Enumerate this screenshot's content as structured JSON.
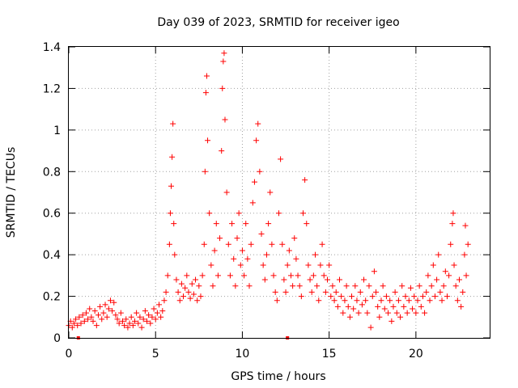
{
  "chart_data": {
    "type": "scatter",
    "title": "Day 039 of 2023, SRMTID for receiver igeo",
    "xlabel": "GPS time / hours",
    "ylabel": "SRMTID / TECUs",
    "xlim": [
      0,
      24.25
    ],
    "ylim": [
      0,
      1.4
    ],
    "xticks": [
      0,
      5,
      10,
      15,
      20
    ],
    "xtick_labels": [
      "0",
      "5",
      "10",
      "15",
      "20"
    ],
    "yticks": [
      0,
      0.2,
      0.4,
      0.6,
      0.8,
      1,
      1.2,
      1.4
    ],
    "ytick_labels": [
      "0",
      "0.2",
      "0.4",
      "0.6",
      "0.8",
      "1",
      "1.2",
      "1.4"
    ],
    "grid": true,
    "marker": "+",
    "color": "#ff0000",
    "series": [
      {
        "name": "SRMTID",
        "points": [
          [
            0.0,
            0.06
          ],
          [
            0.1,
            0.08
          ],
          [
            0.2,
            0.05
          ],
          [
            0.3,
            0.07
          ],
          [
            0.4,
            0.09
          ],
          [
            0.5,
            0.06
          ],
          [
            0.6,
            0.1
          ],
          [
            0.7,
            0.07
          ],
          [
            0.8,
            0.11
          ],
          [
            0.9,
            0.08
          ],
          [
            1.0,
            0.12
          ],
          [
            1.1,
            0.09
          ],
          [
            1.2,
            0.14
          ],
          [
            1.3,
            0.1
          ],
          [
            1.4,
            0.08
          ],
          [
            1.5,
            0.13
          ],
          [
            1.6,
            0.06
          ],
          [
            1.7,
            0.11
          ],
          [
            1.8,
            0.15
          ],
          [
            1.9,
            0.09
          ],
          [
            2.0,
            0.12
          ],
          [
            2.1,
            0.16
          ],
          [
            2.2,
            0.1
          ],
          [
            2.3,
            0.14
          ],
          [
            2.4,
            0.18
          ],
          [
            2.5,
            0.13
          ],
          [
            2.6,
            0.17
          ],
          [
            2.7,
            0.11
          ],
          [
            2.8,
            0.09
          ],
          [
            2.9,
            0.07
          ],
          [
            3.0,
            0.12
          ],
          [
            3.1,
            0.08
          ],
          [
            3.2,
            0.06
          ],
          [
            3.3,
            0.09
          ],
          [
            3.4,
            0.05
          ],
          [
            3.5,
            0.07
          ],
          [
            3.6,
            0.1
          ],
          [
            3.7,
            0.06
          ],
          [
            3.8,
            0.08
          ],
          [
            3.9,
            0.12
          ],
          [
            4.0,
            0.07
          ],
          [
            4.1,
            0.1
          ],
          [
            4.2,
            0.05
          ],
          [
            4.3,
            0.09
          ],
          [
            4.4,
            0.13
          ],
          [
            4.5,
            0.08
          ],
          [
            4.6,
            0.11
          ],
          [
            4.7,
            0.07
          ],
          [
            4.8,
            0.1
          ],
          [
            4.9,
            0.14
          ],
          [
            5.0,
            0.09
          ],
          [
            5.1,
            0.12
          ],
          [
            5.2,
            0.16
          ],
          [
            5.3,
            0.1
          ],
          [
            5.4,
            0.13
          ],
          [
            5.5,
            0.18
          ],
          [
            5.6,
            0.22
          ],
          [
            5.7,
            0.3
          ],
          [
            5.8,
            0.45
          ],
          [
            5.85,
            0.6
          ],
          [
            5.9,
            0.73
          ],
          [
            5.95,
            0.87
          ],
          [
            6.0,
            1.03
          ],
          [
            6.05,
            0.55
          ],
          [
            6.1,
            0.4
          ],
          [
            6.2,
            0.28
          ],
          [
            6.3,
            0.22
          ],
          [
            6.4,
            0.18
          ],
          [
            6.5,
            0.26
          ],
          [
            6.6,
            0.2
          ],
          [
            6.7,
            0.24
          ],
          [
            6.8,
            0.3
          ],
          [
            6.9,
            0.22
          ],
          [
            7.0,
            0.19
          ],
          [
            7.1,
            0.26
          ],
          [
            7.2,
            0.21
          ],
          [
            7.3,
            0.28
          ],
          [
            7.4,
            0.18
          ],
          [
            7.5,
            0.25
          ],
          [
            7.6,
            0.2
          ],
          [
            7.7,
            0.3
          ],
          [
            7.8,
            0.45
          ],
          [
            7.85,
            0.8
          ],
          [
            7.9,
            1.18
          ],
          [
            7.95,
            1.26
          ],
          [
            8.0,
            0.95
          ],
          [
            8.1,
            0.6
          ],
          [
            8.2,
            0.35
          ],
          [
            8.3,
            0.25
          ],
          [
            8.4,
            0.42
          ],
          [
            8.5,
            0.55
          ],
          [
            8.6,
            0.3
          ],
          [
            8.7,
            0.48
          ],
          [
            8.8,
            0.9
          ],
          [
            8.85,
            1.2
          ],
          [
            8.9,
            1.33
          ],
          [
            8.95,
            1.37
          ],
          [
            9.0,
            1.05
          ],
          [
            9.1,
            0.7
          ],
          [
            9.2,
            0.45
          ],
          [
            9.3,
            0.3
          ],
          [
            9.4,
            0.55
          ],
          [
            9.5,
            0.38
          ],
          [
            9.6,
            0.25
          ],
          [
            9.7,
            0.48
          ],
          [
            9.8,
            0.6
          ],
          [
            9.9,
            0.35
          ],
          [
            10.0,
            0.42
          ],
          [
            10.1,
            0.3
          ],
          [
            10.2,
            0.55
          ],
          [
            10.3,
            0.38
          ],
          [
            10.4,
            0.25
          ],
          [
            10.5,
            0.45
          ],
          [
            10.6,
            0.65
          ],
          [
            10.7,
            0.75
          ],
          [
            10.8,
            0.95
          ],
          [
            10.9,
            1.03
          ],
          [
            11.0,
            0.8
          ],
          [
            11.1,
            0.5
          ],
          [
            11.2,
            0.35
          ],
          [
            11.3,
            0.28
          ],
          [
            11.4,
            0.4
          ],
          [
            11.5,
            0.55
          ],
          [
            11.6,
            0.7
          ],
          [
            11.7,
            0.45
          ],
          [
            11.8,
            0.3
          ],
          [
            11.9,
            0.22
          ],
          [
            12.0,
            0.18
          ],
          [
            12.1,
            0.6
          ],
          [
            12.2,
            0.86
          ],
          [
            12.3,
            0.45
          ],
          [
            12.4,
            0.28
          ],
          [
            12.5,
            0.22
          ],
          [
            12.6,
            0.35
          ],
          [
            12.7,
            0.42
          ],
          [
            12.8,
            0.3
          ],
          [
            12.9,
            0.25
          ],
          [
            13.0,
            0.48
          ],
          [
            13.1,
            0.38
          ],
          [
            13.2,
            0.3
          ],
          [
            13.3,
            0.25
          ],
          [
            13.4,
            0.2
          ],
          [
            13.5,
            0.6
          ],
          [
            13.6,
            0.76
          ],
          [
            13.7,
            0.55
          ],
          [
            13.8,
            0.35
          ],
          [
            13.9,
            0.28
          ],
          [
            14.0,
            0.22
          ],
          [
            14.1,
            0.3
          ],
          [
            14.2,
            0.4
          ],
          [
            14.3,
            0.25
          ],
          [
            14.4,
            0.18
          ],
          [
            14.5,
            0.35
          ],
          [
            14.6,
            0.45
          ],
          [
            14.7,
            0.3
          ],
          [
            14.8,
            0.22
          ],
          [
            14.9,
            0.28
          ],
          [
            15.0,
            0.35
          ],
          [
            15.1,
            0.2
          ],
          [
            15.2,
            0.25
          ],
          [
            15.3,
            0.18
          ],
          [
            15.4,
            0.22
          ],
          [
            15.5,
            0.15
          ],
          [
            15.6,
            0.28
          ],
          [
            15.7,
            0.2
          ],
          [
            15.8,
            0.12
          ],
          [
            15.9,
            0.18
          ],
          [
            16.0,
            0.25
          ],
          [
            16.1,
            0.15
          ],
          [
            16.2,
            0.1
          ],
          [
            16.3,
            0.2
          ],
          [
            16.4,
            0.14
          ],
          [
            16.5,
            0.25
          ],
          [
            16.6,
            0.18
          ],
          [
            16.7,
            0.12
          ],
          [
            16.8,
            0.22
          ],
          [
            16.9,
            0.16
          ],
          [
            17.0,
            0.28
          ],
          [
            17.1,
            0.18
          ],
          [
            17.2,
            0.12
          ],
          [
            17.3,
            0.25
          ],
          [
            17.4,
            0.05
          ],
          [
            17.5,
            0.2
          ],
          [
            17.6,
            0.32
          ],
          [
            17.7,
            0.22
          ],
          [
            17.8,
            0.15
          ],
          [
            17.9,
            0.1
          ],
          [
            18.0,
            0.18
          ],
          [
            18.1,
            0.25
          ],
          [
            18.2,
            0.14
          ],
          [
            18.3,
            0.2
          ],
          [
            18.4,
            0.12
          ],
          [
            18.5,
            0.18
          ],
          [
            18.6,
            0.08
          ],
          [
            18.7,
            0.15
          ],
          [
            18.8,
            0.22
          ],
          [
            18.9,
            0.12
          ],
          [
            19.0,
            0.18
          ],
          [
            19.1,
            0.1
          ],
          [
            19.2,
            0.25
          ],
          [
            19.3,
            0.15
          ],
          [
            19.4,
            0.2
          ],
          [
            19.5,
            0.12
          ],
          [
            19.6,
            0.18
          ],
          [
            19.7,
            0.24
          ],
          [
            19.8,
            0.14
          ],
          [
            19.9,
            0.2
          ],
          [
            20.0,
            0.12
          ],
          [
            20.1,
            0.18
          ],
          [
            20.2,
            0.25
          ],
          [
            20.3,
            0.15
          ],
          [
            20.4,
            0.2
          ],
          [
            20.5,
            0.12
          ],
          [
            20.6,
            0.22
          ],
          [
            20.7,
            0.3
          ],
          [
            20.8,
            0.18
          ],
          [
            20.9,
            0.25
          ],
          [
            21.0,
            0.35
          ],
          [
            21.1,
            0.2
          ],
          [
            21.2,
            0.28
          ],
          [
            21.3,
            0.4
          ],
          [
            21.4,
            0.22
          ],
          [
            21.5,
            0.18
          ],
          [
            21.6,
            0.25
          ],
          [
            21.7,
            0.32
          ],
          [
            21.8,
            0.2
          ],
          [
            21.9,
            0.3
          ],
          [
            22.0,
            0.45
          ],
          [
            22.1,
            0.55
          ],
          [
            22.15,
            0.6
          ],
          [
            22.2,
            0.35
          ],
          [
            22.3,
            0.25
          ],
          [
            22.4,
            0.18
          ],
          [
            22.5,
            0.28
          ],
          [
            22.6,
            0.15
          ],
          [
            22.7,
            0.22
          ],
          [
            22.8,
            0.4
          ],
          [
            22.85,
            0.54
          ],
          [
            22.9,
            0.3
          ],
          [
            23.0,
            0.45
          ]
        ]
      }
    ],
    "baseline_markers": [
      0.55,
      12.6
    ]
  }
}
